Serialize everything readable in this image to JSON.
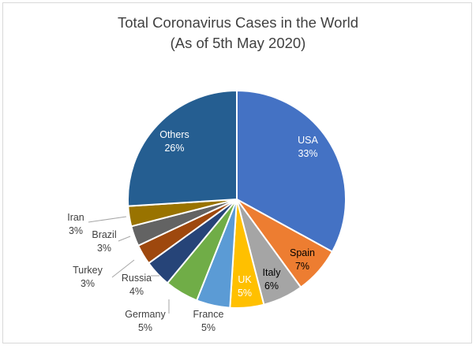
{
  "chart_data": {
    "type": "pie",
    "title": "Total Coronavirus Cases in the World",
    "subtitle": "(As of 5th May 2020)",
    "slices": [
      {
        "label": "USA",
        "value": 33,
        "value_label": "33%",
        "color": "#4472c4"
      },
      {
        "label": "Spain",
        "value": 7,
        "value_label": "7%",
        "color": "#ed7d31"
      },
      {
        "label": "Italy",
        "value": 6,
        "value_label": "6%",
        "color": "#a5a5a5"
      },
      {
        "label": "UK",
        "value": 5,
        "value_label": "5%",
        "color": "#ffc000"
      },
      {
        "label": "France",
        "value": 5,
        "value_label": "5%",
        "color": "#5b9bd5"
      },
      {
        "label": "Germany",
        "value": 5,
        "value_label": "5%",
        "color": "#70ad47"
      },
      {
        "label": "Russia",
        "value": 4,
        "value_label": "4%",
        "color": "#264478"
      },
      {
        "label": "Turkey",
        "value": 3,
        "value_label": "3%",
        "color": "#9e480e"
      },
      {
        "label": "Brazil",
        "value": 3,
        "value_label": "3%",
        "color": "#636363"
      },
      {
        "label": "Iran",
        "value": 3,
        "value_label": "3%",
        "color": "#997300"
      },
      {
        "label": "Others",
        "value": 26,
        "value_label": "26%",
        "color": "#255e91"
      }
    ]
  }
}
